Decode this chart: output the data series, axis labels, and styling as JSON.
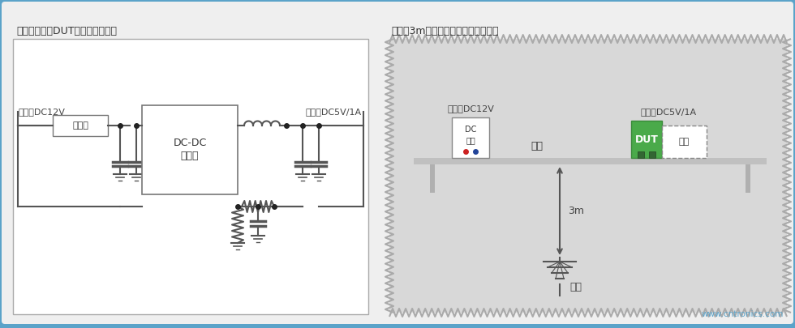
{
  "bg_color": "#5ba3c9",
  "outer_bg": "#efefef",
  "panel_bg": "#ffffff",
  "gray_bg": "#d8d8d8",
  "left_title": "《评估电路（DUT：被测设备）》",
  "right_title": "《通过3m法电波暗室测量辐射噪音》",
  "input_label_left": "输入：DC12V",
  "output_label_left": "输出：DC5V/1A",
  "input_label_right": "输入：DC12V",
  "output_label_right": "输出：DC5V/1A",
  "filter_label": "过滤器",
  "dcdc_label1": "DC-DC",
  "dcdc_label2": "转换器",
  "dc_power_label1": "DC",
  "dc_power_label2": "电源",
  "cable_label": "电缆",
  "dut_label": "DUT",
  "load_label": "负载",
  "distance_label": "3m",
  "antenna_label": "天线",
  "line_color": "#555555",
  "dot_color": "#222222",
  "website": "www.cntronics.com",
  "website_color": "#5ba3c9"
}
